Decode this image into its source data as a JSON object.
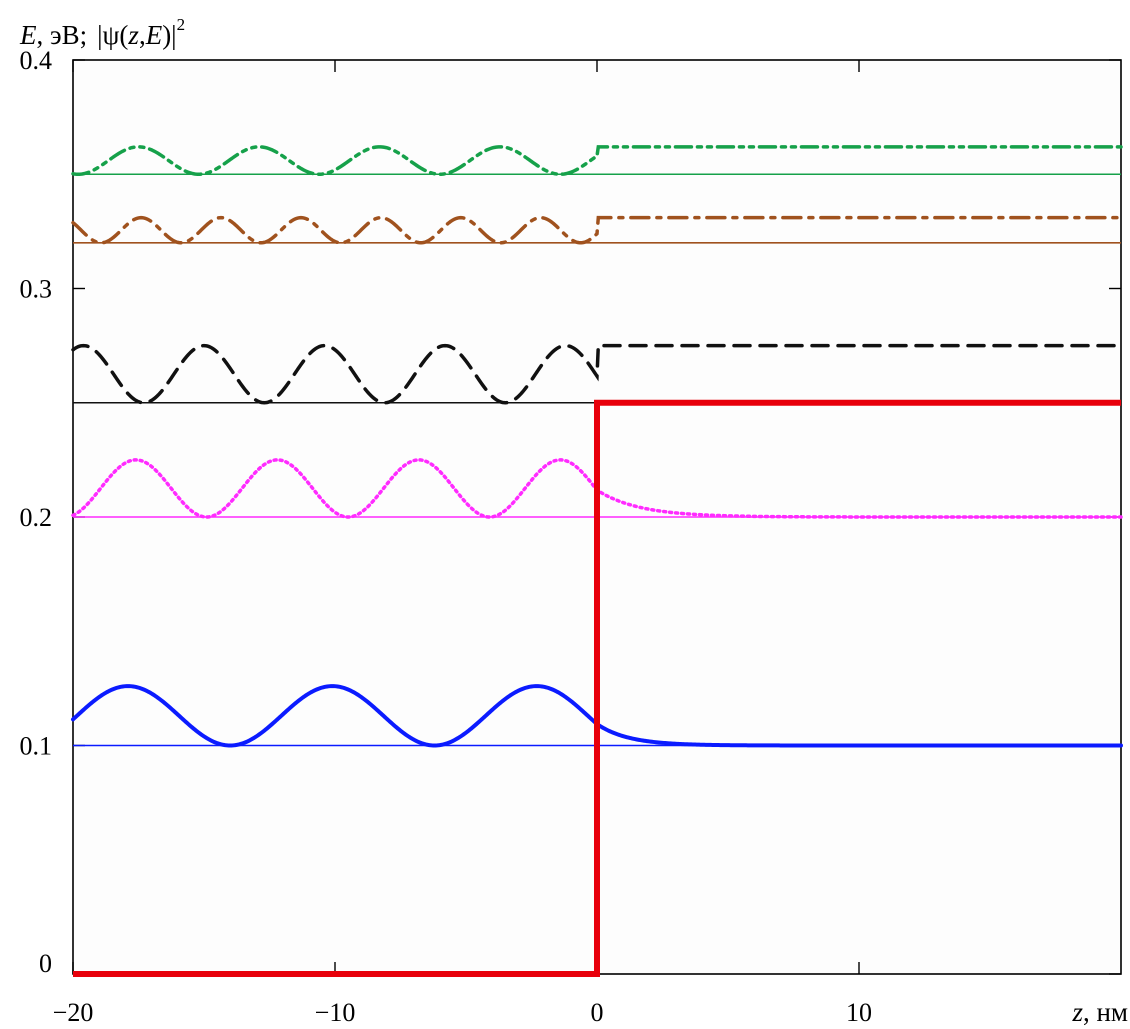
{
  "chart_data": {
    "type": "line",
    "title": "",
    "ylabel": {
      "E": "E",
      "sep": ", эВ;",
      "psi_open": "|ψ(",
      "z": "z",
      "comma": ",",
      "E2": "E",
      "psi_close": ")|",
      "sup": "2"
    },
    "xlabel": {
      "z": "z",
      "unit": ", нм"
    },
    "xlim": [
      -20,
      20
    ],
    "ylim": [
      0,
      0.4
    ],
    "x_ticks": [
      -20,
      -10,
      0,
      10
    ],
    "x_tick_labels": [
      "−20",
      "−10",
      "0",
      "10"
    ],
    "y_ticks": [
      0,
      0.1,
      0.2,
      0.3,
      0.4
    ],
    "y_tick_labels": [
      "0",
      "0.1",
      "0.2",
      "0.3",
      "0.4"
    ],
    "potential": {
      "color": "#e8000b",
      "points": [
        [
          -20,
          0
        ],
        [
          0,
          0
        ],
        [
          0,
          0.25
        ],
        [
          20,
          0.25
        ]
      ]
    },
    "levels": [
      {
        "energy": 0.1,
        "color": "#0b1bff",
        "style": "solid",
        "amplitude": 0.026,
        "period": 7.8,
        "phase_x": -17.9,
        "decay": 1.2,
        "bound": true
      },
      {
        "energy": 0.2,
        "color": "#ff2bff",
        "style": "dotted",
        "amplitude": 0.025,
        "period": 5.4,
        "phase_x": -17.6,
        "decay": 1.6,
        "bound": true
      },
      {
        "energy": 0.25,
        "color": "#111111",
        "style": "dashed",
        "amplitude": 0.025,
        "period": 4.6,
        "phase_x": -19.6,
        "bound": false
      },
      {
        "energy": 0.32,
        "color": "#a0521e",
        "style": "dashdot",
        "amplitude": 0.011,
        "period": 3.05,
        "phase_x": -17.4,
        "bound": false
      },
      {
        "energy": 0.35,
        "color": "#16a14a",
        "style": "dashdotdot",
        "amplitude": 0.012,
        "period": 4.6,
        "phase_x": -17.5,
        "bound": false
      }
    ]
  }
}
